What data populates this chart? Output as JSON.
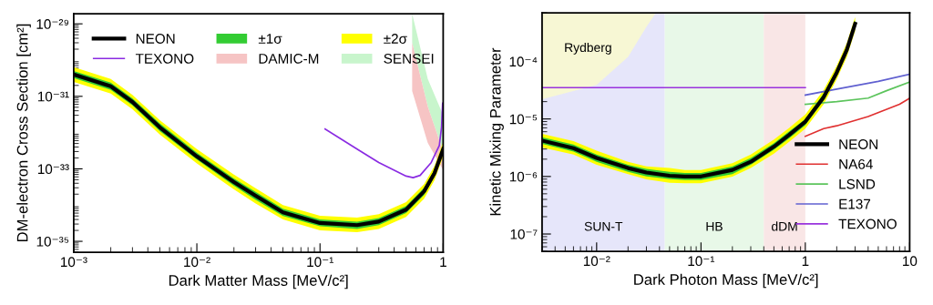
{
  "chart_data": [
    {
      "type": "line",
      "xlabel": "Dark Matter Mass [MeV/c²]",
      "ylabel": "DM-electron Cross Section [cm²]",
      "log": "xy",
      "legend": "top",
      "grid": false,
      "xlim": [
        0.001,
        1
      ],
      "xticks": [
        {
          "value": 0.001,
          "label": "10⁻³"
        },
        {
          "value": 0.01,
          "label": "10⁻²"
        },
        {
          "value": 0.1,
          "label": "10⁻¹"
        },
        1
      ],
      "ylim": [
        5e-36,
        1.9e-29
      ],
      "yticks": [
        {
          "value": 1e-29,
          "label": "10⁻²⁹"
        },
        {
          "value": 1e-31,
          "label": "10⁻³¹"
        },
        {
          "value": 1e-33,
          "label": "10⁻³³"
        },
        {
          "value": 1e-35,
          "label": "10⁻³⁵"
        }
      ],
      "series": [
        {
          "name": "NEON",
          "color": "#000000",
          "x": [
            0.001,
            0.002,
            0.003,
            0.005,
            0.01,
            0.02,
            0.03,
            0.05,
            0.1,
            0.2,
            0.3,
            0.5,
            0.7,
            0.85,
            1
          ],
          "values": [
            4e-31,
            1.9e-31,
            7e-32,
            1.4e-32,
            2.2e-33,
            4.3e-34,
            1.8e-34,
            6.3e-35,
            3.2e-35,
            2.8e-35,
            3.5e-35,
            7.5e-35,
            2.4e-34,
            7.6e-34,
            3.5e-33
          ]
        },
        {
          "name": "±1σ",
          "color": "#33cc33",
          "x": [
            0.001,
            0.002,
            0.003,
            0.005,
            0.01,
            0.02,
            0.03,
            0.05,
            0.1,
            0.2,
            0.3,
            0.5,
            0.7,
            0.85,
            1
          ],
          "values": [
            null,
            null,
            null,
            null,
            null,
            null,
            null,
            null,
            null,
            null,
            null,
            null,
            null,
            null,
            null
          ],
          "lower": [
            3.2e-31,
            1.5e-31,
            5.6e-32,
            1.1e-32,
            1.8e-33,
            3.4e-34,
            1.4e-34,
            5e-35,
            2.6e-35,
            2.2e-35,
            2.8e-35,
            6e-35,
            1.9e-34,
            6.1e-34,
            2.8e-33
          ],
          "upper": [
            5e-31,
            2.4e-31,
            8.8e-32,
            1.8e-32,
            2.8e-33,
            5.4e-34,
            2.3e-34,
            7.9e-35,
            4e-35,
            3.5e-35,
            4.4e-35,
            9.4e-35,
            3e-34,
            9.5e-34,
            4.4e-33
          ]
        },
        {
          "name": "±2σ",
          "color": "#ffff00",
          "x": [
            0.001,
            0.002,
            0.003,
            0.005,
            0.01,
            0.02,
            0.03,
            0.05,
            0.1,
            0.2,
            0.3,
            0.5,
            0.7,
            0.85,
            1
          ],
          "values": [
            null,
            null,
            null,
            null,
            null,
            null,
            null,
            null,
            null,
            null,
            null,
            null,
            null,
            null,
            null
          ],
          "lower": [
            2.5e-31,
            1.2e-31,
            4.4e-32,
            8.8e-33,
            1.4e-33,
            2.7e-34,
            1.1e-34,
            4e-35,
            2e-35,
            1.8e-35,
            2.2e-35,
            4.7e-35,
            1.5e-34,
            4.8e-34,
            2.2e-33
          ],
          "upper": [
            6.4e-31,
            3e-31,
            1.1e-31,
            2.2e-32,
            3.5e-33,
            6.9e-34,
            2.9e-34,
            1e-34,
            5.1e-35,
            4.5e-35,
            5.6e-35,
            1.2e-34,
            3.8e-34,
            1.2e-33,
            5.6e-33
          ]
        },
        {
          "name": "TEXONO",
          "color": "#8a2be2",
          "x": [
            0.11,
            0.2,
            0.3,
            0.5,
            0.57,
            0.65,
            0.8,
            0.93,
            0.97,
            0.99
          ],
          "values": [
            1.26e-32,
            3.5e-33,
            1.5e-33,
            6.3e-34,
            5.7e-34,
            6.6e-34,
            1.5e-33,
            4.4e-33,
            1.4e-32,
            6.5e-32
          ]
        },
        {
          "name": "DAMIC-M",
          "color": "#f6c4c4",
          "x": [
            0.56,
            0.75,
            1
          ],
          "values": [
            null,
            null,
            null
          ],
          "lower": [
            1.4e-31,
            5.2e-33,
            9.3e-34
          ],
          "upper": [
            3e-30,
            5.2e-32,
            3e-33
          ]
        },
        {
          "name": "SENSEI",
          "color": "#c8f5cc",
          "x": [
            0.56,
            0.75,
            1
          ],
          "values": [
            null,
            null,
            null
          ],
          "lower": [
            3e-30,
            5.2e-32,
            3e-33
          ],
          "upper": [
            1.9e-29,
            3e-31,
            3e-32
          ]
        }
      ]
    },
    {
      "type": "line",
      "xlabel": "Dark Photon Mass [MeV/c²]",
      "ylabel": "Kinetic Mixing Parameter",
      "log": "xy",
      "legend": "bottom right",
      "grid": false,
      "xlim": [
        0.003,
        10
      ],
      "xticks": [
        {
          "value": 0.01,
          "label": "10⁻²"
        },
        {
          "value": 0.1,
          "label": "10⁻¹"
        },
        1,
        10
      ],
      "ylim": [
        5e-08,
        0.0007
      ],
      "yticks": [
        {
          "value": 0.0001,
          "label": "10⁻⁴"
        },
        {
          "value": 1e-05,
          "label": "10⁻⁵"
        },
        {
          "value": 1e-06,
          "label": "10⁻⁶"
        },
        {
          "value": 1e-07,
          "label": "10⁻⁷"
        }
      ],
      "bands": [
        {
          "axis": "x",
          "from": 0.003,
          "to": 0.045,
          "label": "SUN-T",
          "color": "#e6e6fa"
        },
        {
          "axis": "x",
          "from": 0.045,
          "to": 0.4,
          "label": "HB",
          "color": "#e8f8e8"
        },
        {
          "axis": "x",
          "from": 0.4,
          "to": 1,
          "label": "dDM",
          "color": "#f9e6e6"
        }
      ],
      "annotations": [
        "Rydberg"
      ],
      "series": [
        {
          "name": "NEON",
          "color": "#000000",
          "x": [
            0.003,
            0.006,
            0.01,
            0.02,
            0.03,
            0.05,
            0.07,
            0.1,
            0.2,
            0.3,
            0.5,
            0.7,
            1,
            1.5,
            2,
            2.5,
            3
          ],
          "values": [
            4.2e-06,
            3.1e-06,
            2.1e-06,
            1.4e-06,
            1.17e-06,
            1.03e-06,
            1e-06,
            1e-06,
            1.3e-06,
            1.8e-06,
            3.3e-06,
            5.3e-06,
            9e-06,
            2.4e-05,
            6.4e-05,
            0.00016,
            0.00045
          ]
        },
        {
          "color": "#33cc33",
          "x": [
            0.003,
            0.006,
            0.01,
            0.02,
            0.03,
            0.05,
            0.07,
            0.1,
            0.2,
            0.3,
            0.5,
            0.7,
            1,
            1.5,
            2,
            2.5,
            3
          ],
          "values": [
            null,
            null,
            null,
            null,
            null,
            null,
            null,
            null,
            null,
            null,
            null,
            null,
            null,
            null,
            null,
            null,
            null
          ],
          "lower": [
            3.7e-06,
            2.7e-06,
            1.8e-06,
            1.2e-06,
            1e-06,
            9e-07,
            8.7e-07,
            8.7e-07,
            1.1e-06,
            1.6e-06,
            2.9e-06,
            4.6e-06,
            7.8e-06,
            2.1e-05,
            5.6e-05,
            0.00014,
            0.00039
          ],
          "upper": [
            4.8e-06,
            3.6e-06,
            2.4e-06,
            1.6e-06,
            1.35e-06,
            1.2e-06,
            1.15e-06,
            1.15e-06,
            1.5e-06,
            2.1e-06,
            3.8e-06,
            6.1e-06,
            1e-05,
            2.8e-05,
            7.4e-05,
            0.00018,
            0.00052
          ]
        },
        {
          "color": "#ffff00",
          "x": [
            0.003,
            0.006,
            0.01,
            0.02,
            0.03,
            0.05,
            0.07,
            0.1,
            0.2,
            0.3,
            0.5,
            0.7,
            1,
            1.5,
            2,
            2.5,
            3
          ],
          "values": [
            null,
            null,
            null,
            null,
            null,
            null,
            null,
            null,
            null,
            null,
            null,
            null,
            null,
            null,
            null,
            null,
            null
          ],
          "lower": [
            3.2e-06,
            2.4e-06,
            1.6e-06,
            1.1e-06,
            8.9e-07,
            7.8e-07,
            7.6e-07,
            7.6e-07,
            9.9e-07,
            1.4e-06,
            2.5e-06,
            4e-06,
            6.8e-06,
            1.8e-05,
            4.9e-05,
            0.00012,
            0.00034
          ],
          "upper": [
            5.5e-06,
            4.1e-06,
            2.8e-06,
            1.8e-06,
            1.5e-06,
            1.4e-06,
            1.3e-06,
            1.3e-06,
            1.7e-06,
            2.4e-06,
            4.4e-06,
            7e-06,
            1.2e-05,
            3.2e-05,
            8.4e-05,
            0.00021,
            0.00059
          ]
        },
        {
          "name": "NA64",
          "color": "#e03030",
          "x": [
            1,
            1.5,
            2,
            4,
            8,
            10
          ],
          "values": [
            5e-06,
            6.8e-06,
            7.6e-06,
            1.1e-05,
            1.8e-05,
            2.3e-05
          ]
        },
        {
          "name": "LSND",
          "color": "#5cc45c",
          "x": [
            1,
            2,
            4,
            6,
            10
          ],
          "values": [
            1.8e-05,
            2e-05,
            2.3e-05,
            3.1e-05,
            4.4e-05
          ]
        },
        {
          "name": "E137",
          "color": "#6060d0",
          "x": [
            1,
            2,
            5,
            10
          ],
          "values": [
            2.6e-05,
            3.3e-05,
            4.5e-05,
            6e-05
          ]
        },
        {
          "name": "TEXONO",
          "color": "#9933dd",
          "x": [
            0.003,
            1
          ],
          "values": [
            3.5e-05,
            3.5e-05
          ]
        },
        {
          "color": "#f7f7d4",
          "x": [
            0.003,
            0.01,
            0.02,
            0.03,
            0.037
          ],
          "values": [
            null,
            null,
            null,
            null,
            null
          ],
          "lower": [
            2.2e-05,
            3.9e-05,
            0.00012,
            0.0004,
            0.0007
          ],
          "upper": [
            0.0007,
            0.0007,
            0.0007,
            0.0007,
            0.0007
          ]
        }
      ]
    }
  ]
}
